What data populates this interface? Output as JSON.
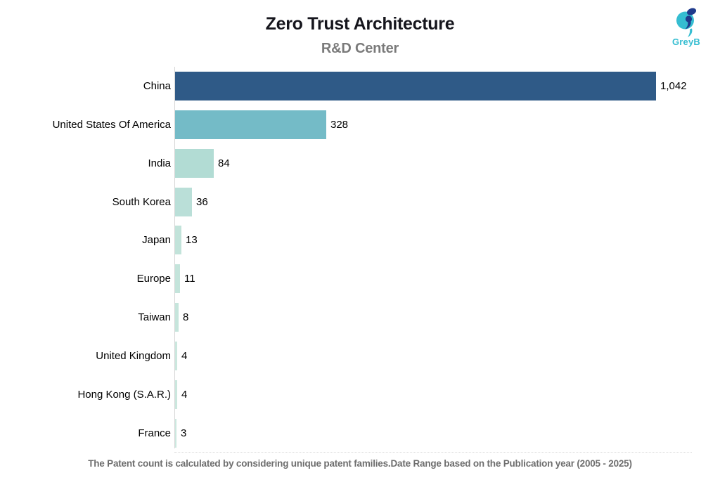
{
  "header": {
    "title": "Zero Trust Architecture",
    "subtitle": "R&D Center"
  },
  "logo": {
    "text": "GreyB",
    "teal": "#35bdd1",
    "navy": "#1f3a8c"
  },
  "chart_data": {
    "type": "bar",
    "orientation": "horizontal",
    "title": "Zero Trust Architecture",
    "subtitle": "R&D Center",
    "xlabel": "",
    "ylabel": "",
    "xlim": [
      0,
      1042
    ],
    "grid": false,
    "legend": false,
    "categories": [
      "China",
      "United States Of America",
      "India",
      "South Korea",
      "Japan",
      "Europe",
      "Taiwan",
      "United Kingdom",
      "Hong Kong (S.A.R.)",
      "France"
    ],
    "values": [
      1042,
      328,
      84,
      36,
      13,
      11,
      8,
      4,
      4,
      3
    ],
    "value_labels": [
      "1,042",
      "328",
      "84",
      "36",
      "13",
      "11",
      "8",
      "4",
      "4",
      "3"
    ],
    "bar_colors": [
      "#2f5a87",
      "#74bbc7",
      "#b2dcd4",
      "#badfd8",
      "#c2e3da",
      "#c4e4db",
      "#c6e5dc",
      "#cbe7de",
      "#cbe7de",
      "#cce8df"
    ]
  },
  "footer": {
    "note": "The Patent count is calculated by considering unique patent families.Date Range based on the Publication year (2005 - 2025)"
  }
}
